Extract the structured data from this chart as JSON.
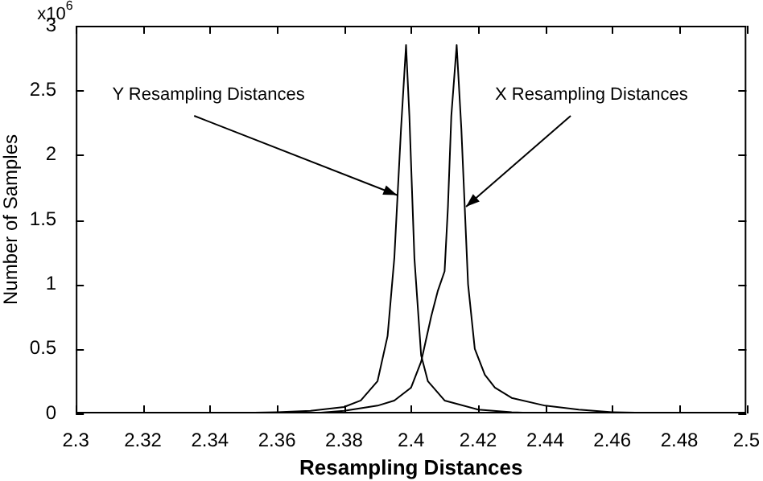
{
  "chart_data": {
    "type": "line",
    "xlabel": "Resampling Distances",
    "ylabel": "Number of Samples",
    "annotations": [
      "x10$^{6}$",
      {
        "text": "Y Resampling Distances",
        "x": 2.3958,
        "y": 1.69
      },
      {
        "text": "X Resampling Distances",
        "x": 2.4164,
        "y": 1.6
      }
    ],
    "series": [
      {
        "color": "#000000",
        "x": [
          2.34,
          2.36,
          2.37,
          2.38,
          2.385,
          2.39,
          2.393,
          2.395,
          2.397,
          2.3985,
          2.3995,
          2.401,
          2.403,
          2.405,
          2.41,
          2.42,
          2.43,
          2.44
        ],
        "values": [
          0,
          0.01,
          0.02,
          0.05,
          0.1,
          0.25,
          0.6,
          1.2,
          2.2,
          2.85,
          2.3,
          1.2,
          0.45,
          0.25,
          0.1,
          0.03,
          0.01,
          0
        ]
      },
      {
        "color": "#000000",
        "x": [
          2.37,
          2.38,
          2.39,
          2.395,
          2.4,
          2.403,
          2.406,
          2.408,
          2.41,
          2.411,
          2.412,
          2.4136,
          2.415,
          2.417,
          2.419,
          2.422,
          2.425,
          2.43,
          2.44,
          2.45,
          2.46,
          2.48
        ],
        "values": [
          0,
          0.02,
          0.06,
          0.1,
          0.2,
          0.4,
          0.75,
          0.95,
          1.1,
          1.6,
          2.3,
          2.85,
          2.2,
          1.0,
          0.5,
          0.3,
          0.2,
          0.12,
          0.06,
          0.03,
          0.01,
          0
        ]
      }
    ],
    "xlim": [
      2.3,
      2.5
    ],
    "xticks": [
      2.3,
      2.32,
      2.34,
      2.36,
      2.38,
      2.4,
      2.42,
      2.44,
      2.46,
      2.48,
      2.5
    ],
    "ylim": [
      0,
      3
    ],
    "yticks": [
      0,
      0.5,
      1,
      1.5,
      2,
      2.5,
      3
    ],
    "grid": false,
    "legend": false,
    "marker": "none",
    "line_style": "solid"
  }
}
